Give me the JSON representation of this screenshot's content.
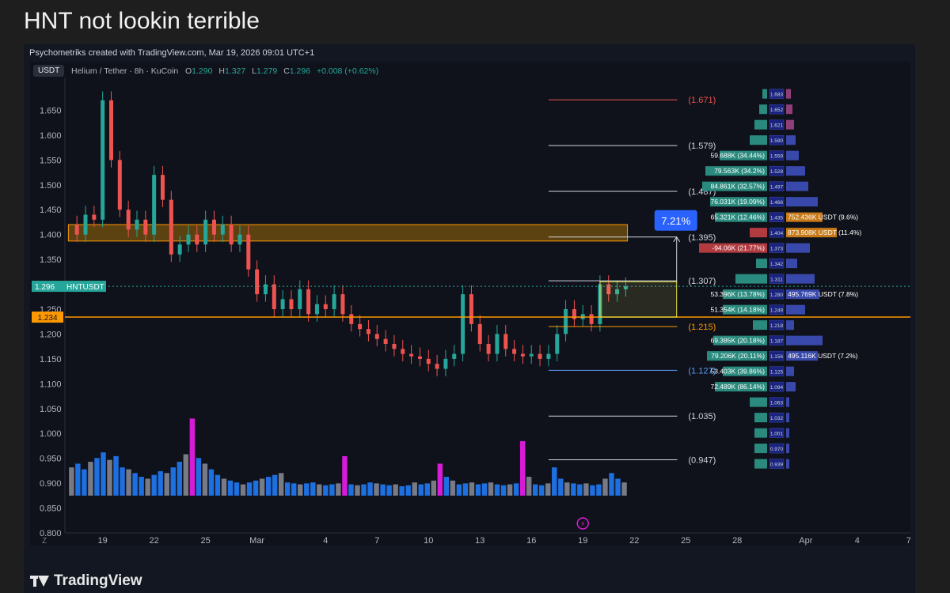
{
  "post_title": "HNT not lookin terrible",
  "credit": "Psychometriks created with TradingView.com, Mar 19, 2026 09:01 UTC+1",
  "currency_badge": "USDT",
  "ohlc": {
    "symbol": "Helium / Tether · 8h · KuCoin",
    "o_label": "O",
    "o": "1.290",
    "h_label": "H",
    "h": "1.327",
    "l_label": "L",
    "l": "1.279",
    "c_label": "C",
    "c": "1.296",
    "change": "+0.008 (+0.62%)"
  },
  "branding": "TradingView",
  "colors": {
    "up": "#26a69a",
    "down": "#ef5350",
    "fib": "#d1d4dc",
    "accent": "#ff9800",
    "highlight_volume": "#d81bd8"
  },
  "chart_data": {
    "type": "candlestick",
    "y_range": [
      0.8,
      1.7
    ],
    "y_ticks": [
      1.65,
      1.6,
      1.55,
      1.5,
      1.45,
      1.4,
      1.35,
      1.3,
      1.25,
      1.2,
      1.15,
      1.1,
      1.05,
      1.0,
      0.95,
      0.9,
      0.85,
      0.8
    ],
    "y_tick_labels": [
      "1.650",
      "1.600",
      "1.550",
      "1.500",
      "1.450",
      "1.400",
      "1.350",
      "1.300",
      "1.250",
      "1.200",
      "1.150",
      "1.100",
      "1.050",
      "1.000",
      "0.950",
      "0.900",
      "0.850",
      "0.800"
    ],
    "x_labels": [
      {
        "label": "19",
        "day": 19
      },
      {
        "label": "22",
        "day": 22
      },
      {
        "label": "25",
        "day": 25
      },
      {
        "label": "Mar",
        "day": 28
      },
      {
        "label": "4",
        "day": 32
      },
      {
        "label": "7",
        "day": 35
      },
      {
        "label": "10",
        "day": 38
      },
      {
        "label": "13",
        "day": 41
      },
      {
        "label": "16",
        "day": 44
      },
      {
        "label": "19",
        "day": 47
      },
      {
        "label": "22",
        "day": 50
      },
      {
        "label": "25",
        "day": 53
      },
      {
        "label": "28",
        "day": 56
      },
      {
        "label": "Apr",
        "day": 60
      },
      {
        "label": "4",
        "day": 63
      },
      {
        "label": "7",
        "day": 66
      }
    ],
    "x_range_days": [
      16.8,
      66.1
    ],
    "price_path": [
      [
        17.0,
        1.42
      ],
      [
        17.5,
        1.4
      ],
      [
        18.0,
        1.44
      ],
      [
        18.5,
        1.43
      ],
      [
        19.0,
        1.67
      ],
      [
        19.5,
        1.55
      ],
      [
        20.0,
        1.45
      ],
      [
        20.5,
        1.41
      ],
      [
        21.0,
        1.43
      ],
      [
        21.5,
        1.4
      ],
      [
        22.0,
        1.52
      ],
      [
        22.5,
        1.47
      ],
      [
        23.0,
        1.36
      ],
      [
        23.5,
        1.38
      ],
      [
        24.0,
        1.4
      ],
      [
        24.5,
        1.38
      ],
      [
        25.0,
        1.43
      ],
      [
        25.5,
        1.4
      ],
      [
        26.0,
        1.42
      ],
      [
        26.5,
        1.38
      ],
      [
        27.0,
        1.4
      ],
      [
        27.5,
        1.33
      ],
      [
        28.0,
        1.28
      ],
      [
        28.5,
        1.3
      ],
      [
        29.0,
        1.25
      ],
      [
        29.5,
        1.27
      ],
      [
        30.0,
        1.25
      ],
      [
        30.5,
        1.29
      ],
      [
        31.0,
        1.24
      ],
      [
        31.5,
        1.26
      ],
      [
        32.0,
        1.25
      ],
      [
        32.5,
        1.28
      ],
      [
        33.0,
        1.24
      ],
      [
        33.5,
        1.22
      ],
      [
        34.0,
        1.21
      ],
      [
        34.5,
        1.2
      ],
      [
        35.0,
        1.19
      ],
      [
        35.5,
        1.18
      ],
      [
        36.0,
        1.17
      ],
      [
        36.5,
        1.16
      ],
      [
        37.0,
        1.155
      ],
      [
        37.5,
        1.15
      ],
      [
        38.0,
        1.14
      ],
      [
        38.5,
        1.13
      ],
      [
        39.0,
        1.15
      ],
      [
        39.5,
        1.16
      ],
      [
        40.0,
        1.28
      ],
      [
        40.5,
        1.22
      ],
      [
        41.0,
        1.18
      ],
      [
        41.5,
        1.16
      ],
      [
        42.0,
        1.2
      ],
      [
        42.5,
        1.17
      ],
      [
        43.0,
        1.16
      ],
      [
        43.5,
        1.155
      ],
      [
        44.0,
        1.16
      ],
      [
        44.5,
        1.15
      ],
      [
        45.0,
        1.16
      ],
      [
        45.5,
        1.2
      ],
      [
        46.0,
        1.25
      ],
      [
        46.5,
        1.23
      ],
      [
        47.0,
        1.24
      ],
      [
        47.5,
        1.22
      ],
      [
        48.0,
        1.3
      ],
      [
        48.5,
        1.28
      ],
      [
        49.0,
        1.29
      ],
      [
        49.5,
        1.296
      ]
    ],
    "volume": [
      0.3,
      0.34,
      0.28,
      0.36,
      0.4,
      0.46,
      0.38,
      0.42,
      0.3,
      0.28,
      0.24,
      0.2,
      0.18,
      0.22,
      0.26,
      0.24,
      0.3,
      0.36,
      0.44,
      0.82,
      0.4,
      0.34,
      0.28,
      0.22,
      0.18,
      0.16,
      0.14,
      0.12,
      0.14,
      0.16,
      0.18,
      0.2,
      0.22,
      0.24,
      0.14,
      0.13,
      0.12,
      0.13,
      0.14,
      0.12,
      0.11,
      0.12,
      0.13,
      0.42,
      0.12,
      0.11,
      0.12,
      0.14,
      0.13,
      0.12,
      0.11,
      0.12,
      0.1,
      0.11,
      0.14,
      0.12,
      0.13,
      0.16,
      0.34,
      0.2,
      0.16,
      0.12,
      0.13,
      0.14,
      0.12,
      0.13,
      0.14,
      0.12,
      0.11,
      0.12,
      0.13,
      0.58,
      0.2,
      0.12,
      0.11,
      0.13,
      0.3,
      0.18,
      0.14,
      0.13,
      0.12,
      0.13,
      0.11,
      0.12,
      0.18,
      0.24,
      0.18,
      0.14
    ],
    "volume_highlight_index": [
      19,
      43,
      58,
      71
    ],
    "fib_levels": [
      {
        "label": "(1.671)",
        "value": 1.671,
        "color": "#ef5350"
      },
      {
        "label": "(1.579)",
        "value": 1.579,
        "color": "#d1d4dc"
      },
      {
        "label": "(1.487)",
        "value": 1.487,
        "color": "#d1d4dc"
      },
      {
        "label": "(1.395)",
        "value": 1.395,
        "color": "#d1d4dc"
      },
      {
        "label": "(1.307)",
        "value": 1.307,
        "color": "#d1d4dc"
      },
      {
        "label": "(1.215)",
        "value": 1.215,
        "color": "#ff9800"
      },
      {
        "label": "(1.127)",
        "value": 1.127,
        "color": "#5b9cf6"
      },
      {
        "label": "(1.035)",
        "value": 1.035,
        "color": "#d1d4dc"
      },
      {
        "label": "(0.947)",
        "value": 0.947,
        "color": "#d1d4dc"
      }
    ],
    "resistance_zone": {
      "top": 1.42,
      "bottom": 1.387
    },
    "measure_box": {
      "top": 1.305,
      "bottom": 1.234,
      "label": "7.21%",
      "target": 1.395
    },
    "horizontal_level": {
      "value": 1.234,
      "label": "1.234"
    },
    "last_price": {
      "value": 1.296,
      "label": "1.296",
      "ticker": "HNTUSDT"
    },
    "volume_profile": [
      {
        "price": "1.683",
        "buy": "",
        "sell": ""
      },
      {
        "price": "1.652",
        "buy": "",
        "sell": ""
      },
      {
        "price": "1.621",
        "buy": "",
        "sell": ""
      },
      {
        "price": "1.590",
        "buy": "",
        "sell": ""
      },
      {
        "price": "1.559",
        "buy": "59.688K (34.44%)",
        "sell": ""
      },
      {
        "price": "1.528",
        "buy": "79.563K (34.2%)",
        "sell": ""
      },
      {
        "price": "1.497",
        "buy": "84.861K (32.57%)",
        "sell": ""
      },
      {
        "price": "1.466",
        "buy": "76.031K (19.09%)",
        "sell": ""
      },
      {
        "price": "1.435",
        "buy": "65.321K (12.46%)",
        "sell": "752.436K USDT (9.6%)"
      },
      {
        "price": "1.404",
        "buy": "",
        "sell": "873.908K USDT (11.4%)"
      },
      {
        "price": "1.373",
        "buy": "-94.06K (21.77%)",
        "sell": ""
      },
      {
        "price": "1.342",
        "buy": "",
        "sell": ""
      },
      {
        "price": "1.311",
        "buy": "",
        "sell": ""
      },
      {
        "price": "1.280",
        "buy": "53.396K (13.78%)",
        "sell": "495.769K USDT (7.8%)"
      },
      {
        "price": "1.249",
        "buy": "51.354K (14.18%)",
        "sell": ""
      },
      {
        "price": "1.218",
        "buy": "",
        "sell": ""
      },
      {
        "price": "1.187",
        "buy": "69.385K (20.18%)",
        "sell": ""
      },
      {
        "price": "1.156",
        "buy": "79.206K (20.11%)",
        "sell": "495.116K USDT (7.2%)"
      },
      {
        "price": "1.125",
        "buy": "53.403K (39.86%)",
        "sell": ""
      },
      {
        "price": "1.094",
        "buy": "72.489K (86.14%)",
        "sell": ""
      },
      {
        "price": "1.063",
        "buy": "",
        "sell": ""
      },
      {
        "price": "1.032",
        "buy": "",
        "sell": ""
      },
      {
        "price": "1.001",
        "buy": "",
        "sell": ""
      },
      {
        "price": "0.970",
        "buy": "",
        "sell": ""
      },
      {
        "price": "0.939",
        "buy": "",
        "sell": ""
      }
    ]
  }
}
